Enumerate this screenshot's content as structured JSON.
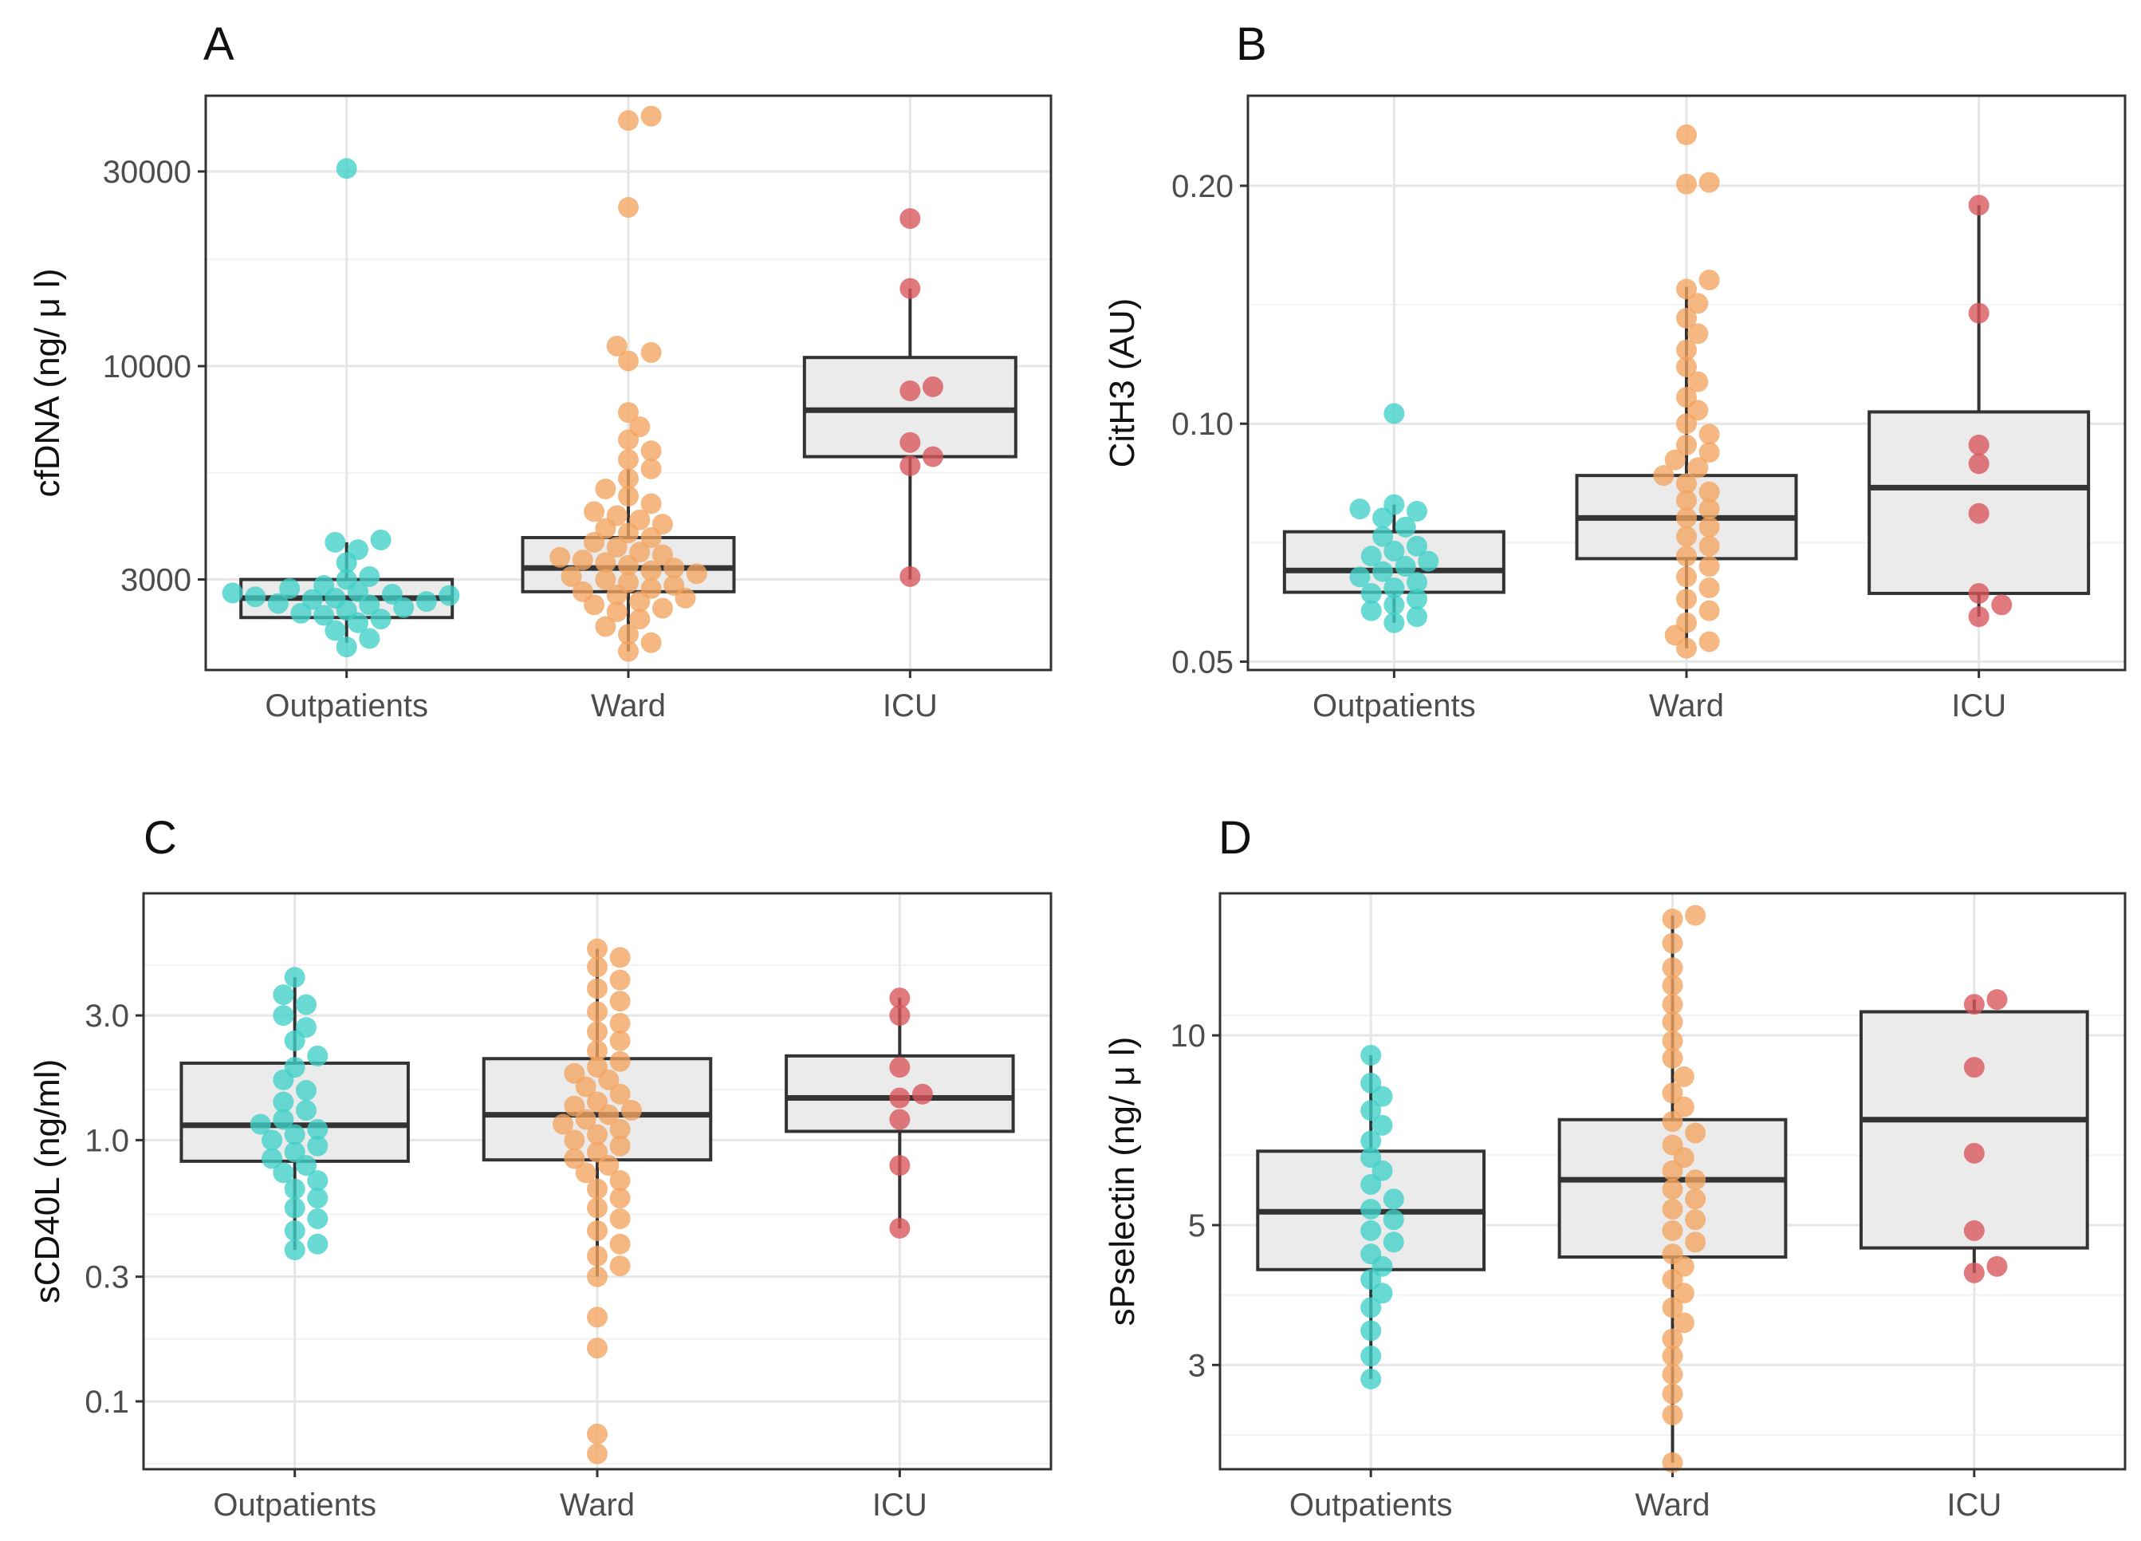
{
  "chart_data": [
    {
      "panel": "A",
      "type": "box",
      "scale": "log10",
      "ylabel": "cfDNA (ng/ μ l)",
      "xlabel": "",
      "categories": [
        "Outpatients",
        "Ward",
        "ICU"
      ],
      "yticks": [
        3000,
        10000,
        30000
      ],
      "ytick_labels": [
        "3000",
        "10000",
        "30000"
      ],
      "ylim": [
        1800,
        46000
      ],
      "groups": [
        {
          "name": "Outpatients",
          "color": "#40cfc8",
          "box": {
            "q1": 2420,
            "median": 2700,
            "q3": 3000,
            "whisker_low": 2100,
            "whisker_high": 3700
          },
          "points": [
            30500,
            3750,
            3700,
            3550,
            3300,
            3050,
            3000,
            2900,
            2850,
            2800,
            2780,
            2760,
            2740,
            2720,
            2700,
            2680,
            2650,
            2620,
            2600,
            2560,
            2520,
            2480,
            2450,
            2400,
            2350,
            2250,
            2150,
            2050
          ]
        },
        {
          "name": "Ward",
          "color": "#f4a460",
          "box": {
            "q1": 2800,
            "median": 3200,
            "q3": 3800,
            "whisker_low": 2000,
            "whisker_high": 5600
          },
          "points": [
            41000,
            40000,
            24500,
            11200,
            10800,
            10300,
            7700,
            7100,
            6600,
            6200,
            5900,
            5600,
            5300,
            5000,
            4800,
            4600,
            4400,
            4300,
            4200,
            4100,
            4000,
            3900,
            3800,
            3700,
            3600,
            3500,
            3450,
            3400,
            3350,
            3300,
            3250,
            3200,
            3150,
            3100,
            3050,
            3000,
            2950,
            2900,
            2850,
            2800,
            2750,
            2700,
            2650,
            2600,
            2550,
            2500,
            2400,
            2300,
            2200,
            2100,
            2000
          ]
        },
        {
          "name": "ICU",
          "color": "#d9545a",
          "box": {
            "q1": 6000,
            "median": 7800,
            "q3": 10500,
            "whisker_low": 3000,
            "whisker_high": 15500
          },
          "points": [
            23000,
            15500,
            8900,
            8700,
            6500,
            6000,
            5700,
            3050
          ]
        }
      ]
    },
    {
      "panel": "B",
      "type": "box",
      "scale": "log10",
      "ylabel": "CitH3 (AU)",
      "xlabel": "",
      "categories": [
        "Outpatients",
        "Ward",
        "ICU"
      ],
      "yticks": [
        0.05,
        0.1,
        0.2
      ],
      "ytick_labels": [
        "0.05",
        "0.10",
        "0.20"
      ],
      "ylim": [
        0.0488,
        0.26
      ],
      "groups": [
        {
          "name": "Outpatients",
          "color": "#40cfc8",
          "box": {
            "q1": 0.0612,
            "median": 0.0652,
            "q3": 0.073,
            "whisker_low": 0.056,
            "whisker_high": 0.079
          },
          "points": [
            0.103,
            0.079,
            0.078,
            0.0775,
            0.076,
            0.074,
            0.072,
            0.07,
            0.069,
            0.068,
            0.067,
            0.066,
            0.065,
            0.064,
            0.063,
            0.062,
            0.061,
            0.06,
            0.059,
            0.058,
            0.057,
            0.056
          ]
        },
        {
          "name": "Ward",
          "color": "#f4a460",
          "box": {
            "q1": 0.0675,
            "median": 0.076,
            "q3": 0.086,
            "whisker_low": 0.052,
            "whisker_high": 0.149
          },
          "points": [
            0.232,
            0.202,
            0.201,
            0.152,
            0.148,
            0.142,
            0.136,
            0.13,
            0.124,
            0.118,
            0.113,
            0.108,
            0.104,
            0.1,
            0.097,
            0.094,
            0.092,
            0.09,
            0.088,
            0.086,
            0.084,
            0.082,
            0.08,
            0.078,
            0.076,
            0.074,
            0.072,
            0.07,
            0.068,
            0.066,
            0.064,
            0.062,
            0.06,
            0.058,
            0.056,
            0.054,
            0.053,
            0.052
          ]
        },
        {
          "name": "ICU",
          "color": "#d9545a",
          "box": {
            "q1": 0.061,
            "median": 0.083,
            "q3": 0.1035,
            "whisker_low": 0.057,
            "whisker_high": 0.189
          },
          "points": [
            0.189,
            0.138,
            0.094,
            0.089,
            0.077,
            0.061,
            0.059,
            0.057
          ]
        }
      ]
    },
    {
      "panel": "C",
      "type": "box",
      "scale": "log10",
      "ylabel": "sCD40L (ng/ml)",
      "xlabel": "",
      "categories": [
        "Outpatients",
        "Ward",
        "ICU"
      ],
      "yticks": [
        0.1,
        0.3,
        1.0,
        3.0
      ],
      "ytick_labels": [
        "0.1",
        "0.3",
        "1.0",
        "3.0"
      ],
      "ylim": [
        0.055,
        8.8
      ],
      "groups": [
        {
          "name": "Outpatients",
          "color": "#40cfc8",
          "box": {
            "q1": 0.83,
            "median": 1.14,
            "q3": 1.97,
            "whisker_low": 0.38,
            "whisker_high": 4.2
          },
          "points": [
            4.2,
            3.6,
            3.3,
            3.0,
            2.7,
            2.4,
            2.1,
            1.9,
            1.7,
            1.55,
            1.4,
            1.3,
            1.2,
            1.15,
            1.1,
            1.05,
            1.0,
            0.95,
            0.9,
            0.85,
            0.8,
            0.75,
            0.7,
            0.65,
            0.6,
            0.55,
            0.5,
            0.45,
            0.4,
            0.38
          ]
        },
        {
          "name": "Ward",
          "color": "#f4a460",
          "box": {
            "q1": 0.84,
            "median": 1.25,
            "q3": 2.05,
            "whisker_low": 0.3,
            "whisker_high": 5.4
          },
          "points": [
            5.4,
            5.0,
            4.6,
            4.1,
            3.8,
            3.4,
            3.1,
            2.8,
            2.6,
            2.4,
            2.2,
            2.0,
            1.9,
            1.8,
            1.7,
            1.6,
            1.5,
            1.4,
            1.35,
            1.3,
            1.25,
            1.2,
            1.15,
            1.1,
            1.05,
            1.0,
            0.95,
            0.9,
            0.85,
            0.8,
            0.75,
            0.7,
            0.65,
            0.6,
            0.55,
            0.5,
            0.45,
            0.4,
            0.36,
            0.33,
            0.3,
            0.21,
            0.16,
            0.075,
            0.063
          ]
        },
        {
          "name": "ICU",
          "color": "#d9545a",
          "box": {
            "q1": 1.08,
            "median": 1.45,
            "q3": 2.1,
            "whisker_low": 0.46,
            "whisker_high": 3.5
          },
          "points": [
            3.5,
            3.0,
            1.9,
            1.5,
            1.45,
            1.2,
            0.8,
            0.46
          ]
        }
      ]
    },
    {
      "panel": "D",
      "type": "box",
      "scale": "log10",
      "ylabel": "sPselectin (ng/ μ l)",
      "xlabel": "",
      "categories": [
        "Outpatients",
        "Ward",
        "ICU"
      ],
      "yticks": [
        3,
        5,
        10
      ],
      "ytick_labels": [
        "3",
        "5",
        "10"
      ],
      "ylim": [
        2.05,
        16.8
      ],
      "groups": [
        {
          "name": "Outpatients",
          "color": "#40cfc8",
          "box": {
            "q1": 4.25,
            "median": 5.25,
            "q3": 6.55,
            "whisker_low": 2.85,
            "whisker_high": 9.3
          },
          "points": [
            9.3,
            8.4,
            8.0,
            7.6,
            7.2,
            6.8,
            6.4,
            6.1,
            5.8,
            5.5,
            5.3,
            5.1,
            4.9,
            4.7,
            4.5,
            4.3,
            4.1,
            3.9,
            3.7,
            3.4,
            3.1,
            2.85
          ]
        },
        {
          "name": "Ward",
          "color": "#f4a460",
          "box": {
            "q1": 4.45,
            "median": 5.9,
            "q3": 7.35,
            "whisker_low": 2.1,
            "whisker_high": 15.5
          },
          "points": [
            15.5,
            15.3,
            14.0,
            12.8,
            12.0,
            11.2,
            10.5,
            9.8,
            9.2,
            8.6,
            8.1,
            7.7,
            7.3,
            7.0,
            6.7,
            6.4,
            6.1,
            5.9,
            5.7,
            5.5,
            5.3,
            5.1,
            4.9,
            4.7,
            4.5,
            4.3,
            4.1,
            3.9,
            3.7,
            3.5,
            3.3,
            3.1,
            2.9,
            2.7,
            2.5,
            2.1
          ]
        },
        {
          "name": "ICU",
          "color": "#d9545a",
          "box": {
            "q1": 4.6,
            "median": 7.35,
            "q3": 10.9,
            "whisker_low": 4.2,
            "whisker_high": 11.4
          },
          "points": [
            11.4,
            11.2,
            8.9,
            6.5,
            4.9,
            4.3,
            4.2
          ]
        }
      ]
    }
  ]
}
